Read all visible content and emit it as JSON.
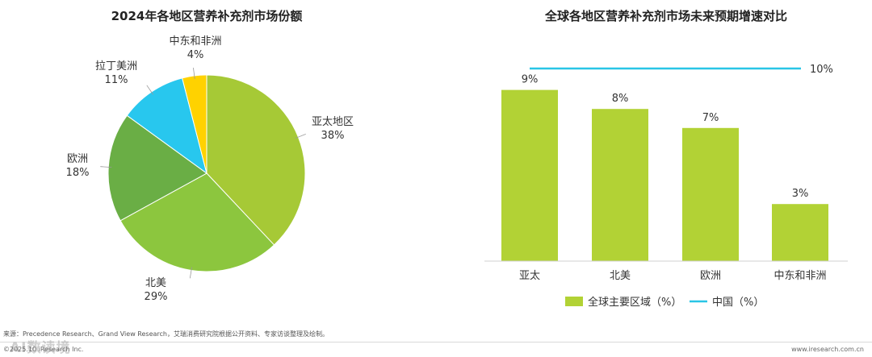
{
  "chart_data": [
    {
      "type": "pie",
      "title": "2024年各地区营养补充剂市场份额",
      "slices": [
        {
          "name": "亚太地区",
          "value": 38,
          "label": "38%",
          "color": "#a6c936"
        },
        {
          "name": "北美",
          "value": 29,
          "label": "29%",
          "color": "#8cc63e"
        },
        {
          "name": "欧洲",
          "value": 18,
          "label": "18%",
          "color": "#6aae45"
        },
        {
          "name": "拉丁美洲",
          "value": 11,
          "label": "11%",
          "color": "#28c7ee"
        },
        {
          "name": "中东和非洲",
          "value": 4,
          "label": "4%",
          "color": "#ffd200"
        }
      ]
    },
    {
      "type": "bar",
      "title": "全球各地区营养补充剂市场未来预期增速对比",
      "categories": [
        "亚太",
        "北美",
        "欧洲",
        "中东和非洲"
      ],
      "series": [
        {
          "name": "全球主要区域（%）",
          "values": [
            9,
            8,
            7,
            3
          ],
          "labels": [
            "9%",
            "8%",
            "7%",
            "3%"
          ],
          "color": "#b2d235"
        },
        {
          "name": "中国（%）",
          "value": 10,
          "label": "10%",
          "color": "#29c5e6"
        }
      ],
      "ylim": [
        0,
        10
      ],
      "legend": "bottom"
    }
  ],
  "footer": {
    "source": "来源：Precedence Research、Grand View Research，艾瑞消费研究院根据公开资料、专家访谈整理及绘制。",
    "copyright": "©2025.10 iResearch Inc.",
    "url": "www.iresearch.com.cn",
    "watermark": "AI数读境"
  }
}
